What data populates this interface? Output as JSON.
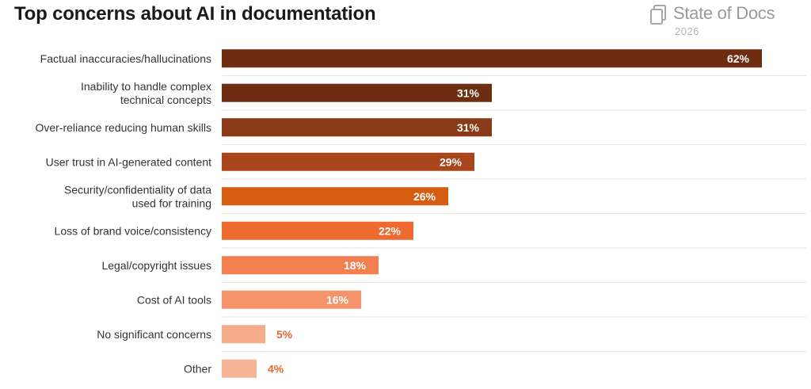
{
  "header": {
    "title": "Top concerns about AI in documentation",
    "brand_name": "State of Docs",
    "brand_year": "2026",
    "brand_icon": "document-stack-icon"
  },
  "chart_data": {
    "type": "bar",
    "orientation": "horizontal",
    "title": "Top concerns about AI in documentation",
    "xlabel": "",
    "ylabel": "",
    "xlim": [
      0,
      62
    ],
    "grid": false,
    "legend": "none",
    "categories": [
      [
        "Factual inaccuracies/hallucinations"
      ],
      [
        "Inability to handle complex",
        "technical concepts"
      ],
      [
        "Over-reliance reducing human skills"
      ],
      [
        "User trust in AI-generated content"
      ],
      [
        "Security/confidentiality of data",
        "used for training"
      ],
      [
        "Loss of brand voice/consistency"
      ],
      [
        "Legal/copyright issues"
      ],
      [
        "Cost of AI tools"
      ],
      [
        "No significant concerns"
      ],
      [
        "Other"
      ]
    ],
    "values": [
      62,
      31,
      31,
      29,
      26,
      22,
      18,
      16,
      5,
      4
    ],
    "value_labels": [
      "62%",
      "31%",
      "31%",
      "29%",
      "26%",
      "22%",
      "18%",
      "16%",
      "5%",
      "4%"
    ],
    "colors": [
      "#6e2c11",
      "#6e2c11",
      "#8b3a17",
      "#a9461b",
      "#d55d12",
      "#ef6a2f",
      "#f27f50",
      "#f5946b",
      "#f6ab8a",
      "#f7b497"
    ],
    "label_color_inside": "#ffffff",
    "label_color_outside": "#e8662b",
    "separator_color": "#e6e6e6"
  }
}
